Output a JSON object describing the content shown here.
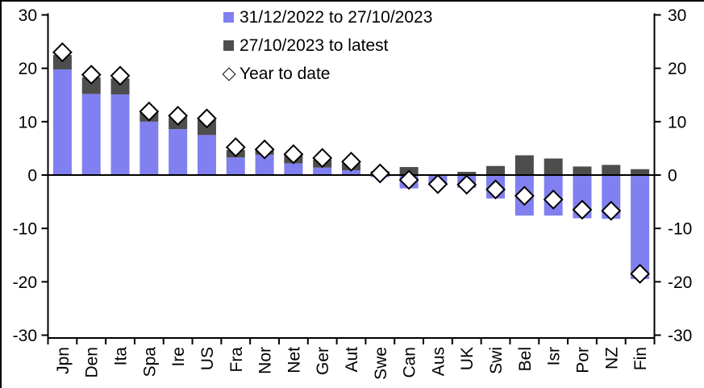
{
  "chart_data": {
    "type": "bar",
    "subtype": "stacked-bars-with-diamond-marker-overlay",
    "title": "",
    "xlabel": "",
    "ylabel": "",
    "grid": false,
    "legend_position": "top-center",
    "y_axis_sides": "both",
    "ylim": [
      -30,
      30
    ],
    "yticks": [
      30,
      20,
      10,
      0,
      -10,
      -20,
      -30
    ],
    "ytick_labels": [
      "30",
      "20",
      "10",
      "0",
      "-10",
      "-20",
      "-30"
    ],
    "categories": [
      "Jpn",
      "Den",
      "Ita",
      "Spa",
      "Ire",
      "US",
      "Fra",
      "Nor",
      "Net",
      "Ger",
      "Aut",
      "Swe",
      "Can",
      "Aus",
      "UK",
      "Swi",
      "Bel",
      "Isr",
      "Por",
      "NZ",
      "Fin"
    ],
    "series": [
      {
        "name": "31/12/2022 to 27/10/2023",
        "type": "bar",
        "color": "#8080F0",
        "values": [
          19.8,
          15.2,
          15.1,
          10.0,
          8.6,
          7.5,
          3.3,
          3.8,
          2.2,
          1.4,
          0.9,
          -0.4,
          -2.5,
          -1.8,
          -2.4,
          -4.4,
          -7.6,
          -7.6,
          -8.1,
          -8.2,
          -19.5
        ]
      },
      {
        "name": "27/10/2023 to latest",
        "type": "bar",
        "color": "#4D4D4D",
        "values": [
          2.7,
          3.1,
          3.0,
          1.7,
          2.2,
          2.8,
          1.4,
          0.8,
          1.5,
          1.5,
          1.3,
          0.7,
          1.5,
          0.1,
          0.6,
          1.7,
          3.7,
          3.1,
          1.6,
          1.9,
          1.1
        ]
      },
      {
        "name": "Year to date",
        "type": "scatter",
        "marker": "diamond",
        "marker_fill": "#FFFFFF",
        "marker_stroke": "#000000",
        "values": [
          23.0,
          18.8,
          18.6,
          11.9,
          11.1,
          10.6,
          5.2,
          4.8,
          3.9,
          3.2,
          2.5,
          0.3,
          -0.9,
          -1.7,
          -1.8,
          -2.7,
          -3.9,
          -4.6,
          -6.5,
          -6.7,
          -18.5
        ]
      }
    ]
  },
  "colors": {
    "bar_period1": "#8080F0",
    "bar_period2": "#4D4D4D",
    "marker_fill": "#FFFFFF",
    "axis": "#000000",
    "background": "#FFFFFF"
  }
}
